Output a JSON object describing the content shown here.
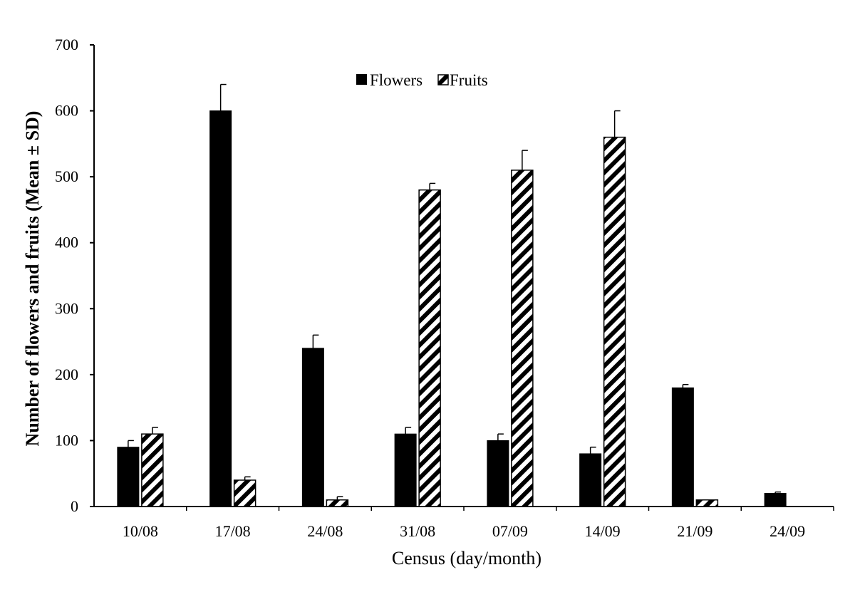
{
  "chart_data": {
    "type": "bar",
    "title": "",
    "xlabel": "Census (day/month)",
    "ylabel": "Number of flowers and fruits (Mean ± SD)",
    "categories": [
      "10/08",
      "17/08",
      "24/08",
      "31/08",
      "07/09",
      "14/09",
      "21/09",
      "24/09"
    ],
    "series": [
      {
        "name": "Flowers",
        "fill": "solid-black",
        "values": [
          90,
          600,
          240,
          110,
          100,
          80,
          180,
          20
        ],
        "sd": [
          10,
          40,
          20,
          10,
          10,
          10,
          5,
          2
        ]
      },
      {
        "name": "Fruits",
        "fill": "diagonal-hatch",
        "values": [
          110,
          40,
          10,
          480,
          510,
          560,
          10,
          0
        ],
        "sd": [
          10,
          5,
          5,
          10,
          30,
          40,
          0,
          0
        ]
      }
    ],
    "ylim": [
      0,
      700
    ],
    "yticks": [
      0,
      100,
      200,
      300,
      400,
      500,
      600,
      700
    ],
    "grid": false,
    "legend_position": "top-center",
    "colors": {
      "bar": "#000000",
      "background": "#ffffff"
    }
  }
}
